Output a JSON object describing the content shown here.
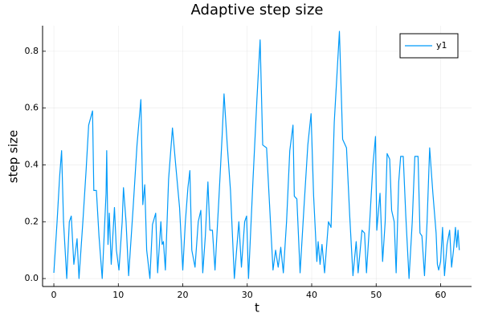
{
  "chart_data": {
    "type": "line",
    "title": "Adaptive step size",
    "x_label": "t",
    "y_label": "step size",
    "x": [
      0,
      0.5,
      0.9,
      1.2,
      1.5,
      2,
      2.4,
      2.7,
      3.1,
      3.6,
      3.9,
      4.5,
      5,
      5.4,
      6,
      6.2,
      6.6,
      7.0,
      7.5,
      8.1,
      8.2,
      8.4,
      8.6,
      8.9,
      9.4,
      9.7,
      10.1,
      10.6,
      10.8,
      11.2,
      11.6,
      12.3,
      12.9,
      13.5,
      13.8,
      14.1,
      14.4,
      14.9,
      15.3,
      15.8,
      16.1,
      16.6,
      16.8,
      17.0,
      17.3,
      17.8,
      18.4,
      18.9,
      19.5,
      20.0,
      20.4,
      20.8,
      21.1,
      21.4,
      21.9,
      22.4,
      22.8,
      23.1,
      23.5,
      23.9,
      24.2,
      24.6,
      25.0,
      25.6,
      26.1,
      26.4,
      26.9,
      27.4,
      28.0,
      28.7,
      29.1,
      29.6,
      29.9,
      30.2,
      30.9,
      31.5,
      32.0,
      32.4,
      33.0,
      33.6,
      34.0,
      34.4,
      34.8,
      35.2,
      35.6,
      36.1,
      36.6,
      37.1,
      37.3,
      37.7,
      38.2,
      38.8,
      39.4,
      39.9,
      40.3,
      40.8,
      41.0,
      41.3,
      41.6,
      42.0,
      42.6,
      43.0,
      43.5,
      44.3,
      44.8,
      45.4,
      45.9,
      46.4,
      46.9,
      47.2,
      47.8,
      48.2,
      48.5,
      49.0,
      49.5,
      49.9,
      50.1,
      50.6,
      51.0,
      51.4,
      51.7,
      52.1,
      52.4,
      52.8,
      53.1,
      53.5,
      53.8,
      54.2,
      54.6,
      55.1,
      55.6,
      56.0,
      56.5,
      56.8,
      57.1,
      57.5,
      57.9,
      58.3,
      58.8,
      59.3,
      59.5,
      59.7,
      60.0,
      60.3,
      60.6,
      61.0,
      61.4,
      61.7,
      62.0,
      62.3,
      62.5,
      62.7,
      62.9
    ],
    "series": [
      {
        "name": "y1",
        "color": "#009af9",
        "values": [
          0.02,
          0.2,
          0.36,
          0.45,
          0.2,
          0.0,
          0.2,
          0.22,
          0.05,
          0.14,
          0.0,
          0.2,
          0.38,
          0.54,
          0.59,
          0.31,
          0.31,
          0.15,
          0.0,
          0.3,
          0.45,
          0.12,
          0.23,
          0.05,
          0.25,
          0.1,
          0.03,
          0.2,
          0.32,
          0.2,
          0.01,
          0.25,
          0.47,
          0.63,
          0.26,
          0.33,
          0.1,
          0.0,
          0.19,
          0.23,
          0.02,
          0.2,
          0.12,
          0.13,
          0.03,
          0.35,
          0.53,
          0.4,
          0.25,
          0.03,
          0.2,
          0.32,
          0.38,
          0.1,
          0.04,
          0.2,
          0.24,
          0.02,
          0.15,
          0.34,
          0.17,
          0.17,
          0.03,
          0.28,
          0.5,
          0.65,
          0.47,
          0.31,
          0.0,
          0.2,
          0.04,
          0.2,
          0.22,
          0.0,
          0.35,
          0.63,
          0.84,
          0.47,
          0.46,
          0.2,
          0.03,
          0.1,
          0.04,
          0.11,
          0.02,
          0.2,
          0.45,
          0.54,
          0.29,
          0.28,
          0.02,
          0.25,
          0.47,
          0.58,
          0.29,
          0.06,
          0.13,
          0.05,
          0.12,
          0.02,
          0.2,
          0.18,
          0.55,
          0.87,
          0.49,
          0.46,
          0.22,
          0.01,
          0.13,
          0.02,
          0.17,
          0.16,
          0.02,
          0.2,
          0.4,
          0.5,
          0.17,
          0.3,
          0.06,
          0.2,
          0.44,
          0.42,
          0.24,
          0.2,
          0.02,
          0.34,
          0.43,
          0.43,
          0.22,
          0.0,
          0.2,
          0.43,
          0.43,
          0.16,
          0.15,
          0.01,
          0.2,
          0.46,
          0.3,
          0.16,
          0.05,
          0.03,
          0.06,
          0.18,
          0.01,
          0.12,
          0.17,
          0.04,
          0.1,
          0.18,
          0.11,
          0.17,
          0.1
        ]
      }
    ],
    "xlim": [
      -1.75,
      64.8
    ],
    "ylim": [
      -0.028,
      0.89
    ],
    "xticks": [
      0,
      10,
      20,
      30,
      40,
      50,
      60
    ],
    "yticks": [
      {
        "value": 0,
        "label": "0.0"
      },
      0.2,
      0.4,
      0.6,
      0.8
    ],
    "grid": true,
    "legend_position": "top-right"
  }
}
